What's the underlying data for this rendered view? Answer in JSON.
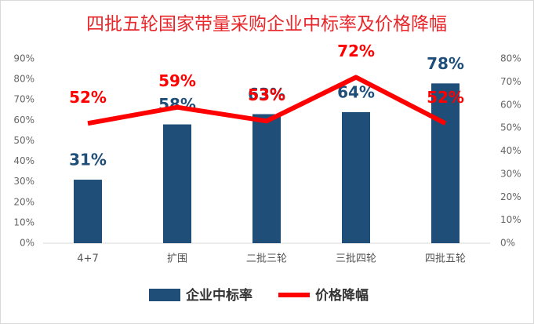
{
  "chart_data": {
    "type": "bar",
    "title": "四批五轮国家带量采购企业中标率及价格降幅",
    "categories": [
      "4+7",
      "扩围",
      "二批三轮",
      "三批四轮",
      "四批五轮"
    ],
    "series": [
      {
        "name": "企业中标率",
        "type": "bar",
        "color": "#1f4e79",
        "values": [
          31,
          58,
          63,
          64,
          78
        ],
        "value_labels": [
          "31%",
          "58%",
          "63%",
          "64%",
          "78%"
        ]
      },
      {
        "name": "价格降幅",
        "type": "line",
        "axis": "y2",
        "color": "#ff0000",
        "values": [
          52,
          59,
          53,
          72,
          52
        ],
        "value_labels": [
          "52%",
          "59%",
          "53%",
          "72%",
          "52%"
        ]
      }
    ],
    "ylim": [
      0,
      90
    ],
    "yticks": [
      {
        "value": 0,
        "label": "0%"
      },
      {
        "value": 10,
        "label": "10%"
      },
      {
        "value": 20,
        "label": "20%"
      },
      {
        "value": 30,
        "label": "30%"
      },
      {
        "value": 40,
        "label": "40%"
      },
      {
        "value": 50,
        "label": "50%"
      },
      {
        "value": 60,
        "label": "60%"
      },
      {
        "value": 70,
        "label": "70%"
      },
      {
        "value": 80,
        "label": "80%"
      },
      {
        "value": 90,
        "label": "90%"
      }
    ],
    "y2lim": [
      0,
      80
    ],
    "y2ticks": [
      {
        "value": 0,
        "label": "0%"
      },
      {
        "value": 10,
        "label": "10%"
      },
      {
        "value": 20,
        "label": "20%"
      },
      {
        "value": 30,
        "label": "30%"
      },
      {
        "value": 40,
        "label": "40%"
      },
      {
        "value": 50,
        "label": "50%"
      },
      {
        "value": 60,
        "label": "60%"
      },
      {
        "value": 70,
        "label": "70%"
      },
      {
        "value": 80,
        "label": "80%"
      }
    ],
    "legend": "bottom"
  }
}
